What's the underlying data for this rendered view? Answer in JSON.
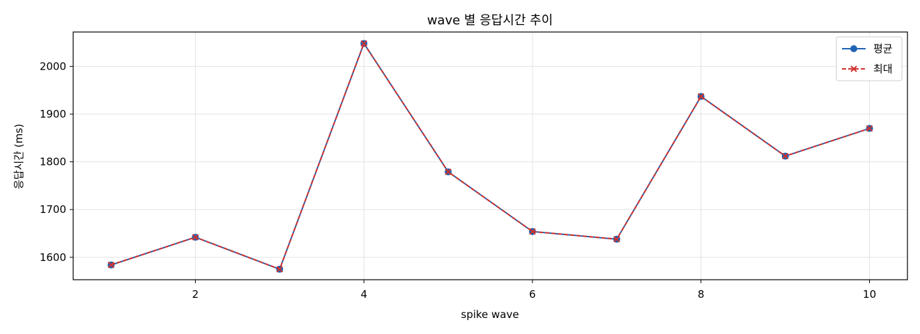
{
  "chart_data": {
    "type": "line",
    "title": "wave 별 응답시간 추이",
    "xlabel": "spike wave",
    "ylabel": "응답시간 (ms)",
    "x": [
      1,
      2,
      3,
      4,
      5,
      6,
      7,
      8,
      9,
      10
    ],
    "xlim": [
      0.55,
      10.45
    ],
    "ylim": [
      1553,
      2072
    ],
    "xticks": [
      2,
      4,
      6,
      8,
      10
    ],
    "yticks": [
      1600,
      1700,
      1800,
      1900,
      2000
    ],
    "grid": true,
    "legend_position": "top-right",
    "series": [
      {
        "name": "평균",
        "color": "#1f64b4",
        "line_style": "solid",
        "marker": "circle",
        "values": [
          1584,
          1642,
          1575,
          2048,
          1779,
          1654,
          1638,
          1937,
          1812,
          1870
        ]
      },
      {
        "name": "최대",
        "color": "#d0312d",
        "line_style": "dashed",
        "marker": "x",
        "values": [
          1584,
          1642,
          1575,
          2048,
          1779,
          1654,
          1638,
          1937,
          1812,
          1870
        ]
      }
    ]
  }
}
